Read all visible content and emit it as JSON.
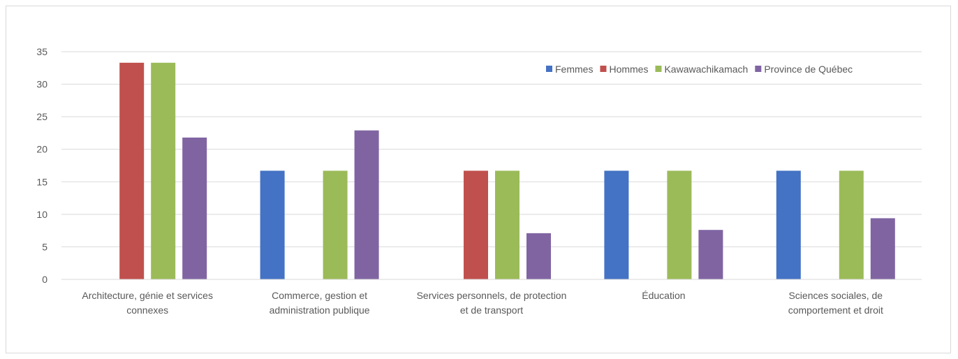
{
  "chart_data": {
    "type": "bar",
    "title": "",
    "xlabel": "",
    "ylabel": "",
    "ylim": [
      0,
      35
    ],
    "yticks": [
      0,
      5,
      10,
      15,
      20,
      25,
      30,
      35
    ],
    "grid": true,
    "legend_position": "top-right",
    "categories": [
      [
        "Architecture, génie et services",
        "connexes"
      ],
      [
        "Commerce, gestion et",
        "administration publique"
      ],
      [
        "Services personnels, de protection",
        "et de transport"
      ],
      [
        "Éducation"
      ],
      [
        "Sciences sociales, de",
        "comportement et droit"
      ]
    ],
    "series": [
      {
        "name": "Femmes",
        "color": "#4472c4",
        "values": [
          0,
          16.7,
          0,
          16.7,
          16.7
        ]
      },
      {
        "name": "Hommes",
        "color": "#c0504d",
        "values": [
          33.3,
          0,
          16.7,
          0,
          0
        ]
      },
      {
        "name": "Kawawachikamach",
        "color": "#9bbb59",
        "values": [
          33.3,
          16.7,
          16.7,
          16.7,
          16.7
        ]
      },
      {
        "name": "Province de Québec",
        "color": "#8064a2",
        "values": [
          21.8,
          22.9,
          7.1,
          7.6,
          9.4
        ]
      }
    ]
  }
}
